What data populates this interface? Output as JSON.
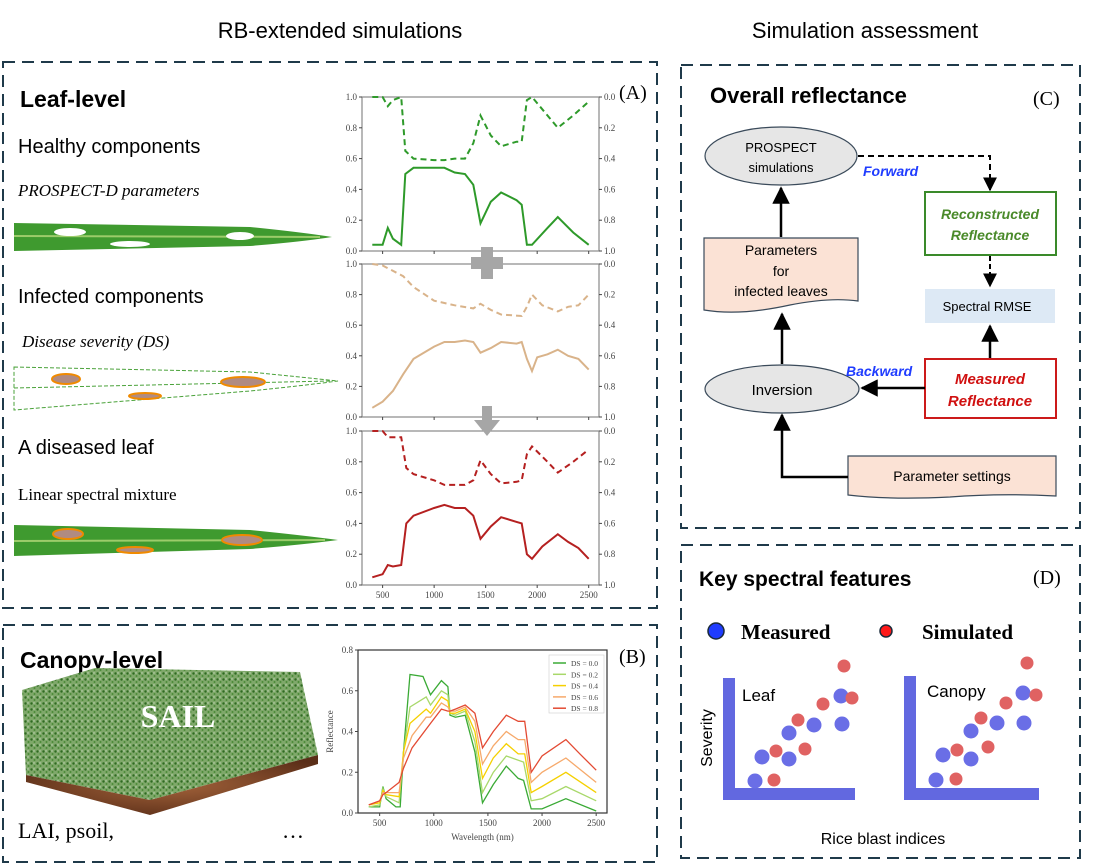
{
  "headers": {
    "left": "RB-extended simulations",
    "right": "Simulation assessment"
  },
  "panel_a": {
    "label": "(A)",
    "title": "Leaf-level",
    "healthy": "Healthy components",
    "healthy_sub": "PROSPECT-D parameters",
    "infected": "Infected components",
    "infected_sub": "Disease severity (DS)",
    "diseased": "A diseased leaf",
    "diseased_sub": "Linear spectral mixture"
  },
  "panel_b": {
    "label": "(B)",
    "title": "Canopy-level",
    "model": "SAIL",
    "params": "LAI, psoil,",
    "ellipsis": "…"
  },
  "panel_c": {
    "label": "(C)",
    "title": "Overall reflectance",
    "prospect": [
      "PROSPECT",
      "simulations"
    ],
    "forward": "Forward",
    "backward": "Backward",
    "reconstructed": [
      "Reconstructed",
      "Reflectance"
    ],
    "rmse": "Spectral RMSE",
    "parameters": [
      "Parameters",
      "for",
      "infected leaves"
    ],
    "inversion": "Inversion",
    "measured": [
      "Measured",
      "Reflectance"
    ],
    "settings": "Parameter settings"
  },
  "panel_d": {
    "label": "(D)",
    "title": "Key spectral features",
    "legend_measured": "Measured",
    "legend_simulated": "Simulated",
    "leaf": "Leaf",
    "canopy": "Canopy",
    "ylabel": "Severity",
    "xlabel": "Rice blast indices",
    "colors": {
      "measured": "#6a6ee6",
      "simulated": "#e06262",
      "axes": "#6268e0"
    }
  },
  "chart_data": [
    {
      "type": "line",
      "panel": "A-healthy",
      "xlim": [
        300,
        2600
      ],
      "ylim": [
        0,
        1
      ],
      "ylim_right": [
        1,
        0
      ],
      "xticks": [
        500,
        1000,
        1500,
        2000,
        2500
      ],
      "yticks": [
        "0.0",
        "0.2",
        "0.4",
        "0.6",
        "0.8",
        "1.0"
      ],
      "yticks_right": [
        "1.0",
        "0.8",
        "0.6",
        "0.4",
        "0.2",
        "0.0"
      ],
      "color": "#2e9a2a",
      "reflectance": [
        [
          400,
          0.04
        ],
        [
          500,
          0.04
        ],
        [
          550,
          0.15
        ],
        [
          600,
          0.08
        ],
        [
          680,
          0.04
        ],
        [
          720,
          0.5
        ],
        [
          800,
          0.54
        ],
        [
          1000,
          0.54
        ],
        [
          1100,
          0.54
        ],
        [
          1200,
          0.51
        ],
        [
          1300,
          0.5
        ],
        [
          1380,
          0.43
        ],
        [
          1450,
          0.18
        ],
        [
          1550,
          0.32
        ],
        [
          1650,
          0.38
        ],
        [
          1800,
          0.33
        ],
        [
          1850,
          0.3
        ],
        [
          1900,
          0.04
        ],
        [
          1950,
          0.04
        ],
        [
          2100,
          0.15
        ],
        [
          2200,
          0.22
        ],
        [
          2350,
          0.12
        ],
        [
          2500,
          0.04
        ]
      ],
      "transmittance": [
        [
          400,
          0
        ],
        [
          500,
          0
        ],
        [
          550,
          0.06
        ],
        [
          600,
          0.02
        ],
        [
          680,
          0
        ],
        [
          720,
          0.35
        ],
        [
          800,
          0.4
        ],
        [
          1000,
          0.41
        ],
        [
          1100,
          0.41
        ],
        [
          1200,
          0.4
        ],
        [
          1300,
          0.4
        ],
        [
          1380,
          0.3
        ],
        [
          1450,
          0.12
        ],
        [
          1550,
          0.25
        ],
        [
          1650,
          0.32
        ],
        [
          1800,
          0.29
        ],
        [
          1850,
          0.29
        ],
        [
          1900,
          0.02
        ],
        [
          1950,
          0
        ],
        [
          2100,
          0.12
        ],
        [
          2200,
          0.2
        ],
        [
          2350,
          0.12
        ],
        [
          2500,
          0.03
        ]
      ]
    },
    {
      "type": "line",
      "panel": "A-infected",
      "xlim": [
        300,
        2600
      ],
      "ylim": [
        0,
        1
      ],
      "ylim_right": [
        1,
        0
      ],
      "xticks": [
        500,
        1000,
        1500,
        2000,
        2500
      ],
      "yticks": [
        "0.0",
        "0.2",
        "0.4",
        "0.6",
        "0.8",
        "1.0"
      ],
      "yticks_right": [
        "1.0",
        "0.8",
        "0.6",
        "0.4",
        "0.2",
        "0.0"
      ],
      "color": "#d9b38a",
      "reflectance": [
        [
          400,
          0.06
        ],
        [
          500,
          0.1
        ],
        [
          600,
          0.17
        ],
        [
          700,
          0.28
        ],
        [
          800,
          0.38
        ],
        [
          1000,
          0.46
        ],
        [
          1100,
          0.49
        ],
        [
          1200,
          0.49
        ],
        [
          1300,
          0.5
        ],
        [
          1380,
          0.49
        ],
        [
          1450,
          0.42
        ],
        [
          1550,
          0.45
        ],
        [
          1650,
          0.49
        ],
        [
          1800,
          0.48
        ],
        [
          1850,
          0.49
        ],
        [
          1900,
          0.38
        ],
        [
          1950,
          0.3
        ],
        [
          2000,
          0.39
        ],
        [
          2100,
          0.41
        ],
        [
          2200,
          0.44
        ],
        [
          2300,
          0.4
        ],
        [
          2400,
          0.38
        ],
        [
          2500,
          0.31
        ]
      ],
      "transmittance": [
        [
          400,
          0
        ],
        [
          500,
          0.01
        ],
        [
          700,
          0.08
        ],
        [
          800,
          0.15
        ],
        [
          1000,
          0.24
        ],
        [
          1200,
          0.27
        ],
        [
          1380,
          0.29
        ],
        [
          1450,
          0.26
        ],
        [
          1550,
          0.3
        ],
        [
          1650,
          0.33
        ],
        [
          1850,
          0.34
        ],
        [
          1900,
          0.28
        ],
        [
          1950,
          0.2
        ],
        [
          2050,
          0.27
        ],
        [
          2200,
          0.31
        ],
        [
          2300,
          0.28
        ],
        [
          2400,
          0.27
        ],
        [
          2500,
          0.2
        ]
      ]
    },
    {
      "type": "line",
      "panel": "A-diseased",
      "xlim": [
        300,
        2600
      ],
      "ylim": [
        0,
        1
      ],
      "ylim_right": [
        1,
        0
      ],
      "xticks": [
        500,
        1000,
        1500,
        2000,
        2500
      ],
      "yticks": [
        "0.0",
        "0.2",
        "0.4",
        "0.6",
        "0.8",
        "1.0"
      ],
      "yticks_right": [
        "1.0",
        "0.8",
        "0.6",
        "0.4",
        "0.2",
        "0.0"
      ],
      "color": "#b52020",
      "reflectance": [
        [
          400,
          0.05
        ],
        [
          500,
          0.07
        ],
        [
          550,
          0.13
        ],
        [
          600,
          0.12
        ],
        [
          680,
          0.13
        ],
        [
          730,
          0.4
        ],
        [
          800,
          0.45
        ],
        [
          1000,
          0.5
        ],
        [
          1100,
          0.52
        ],
        [
          1200,
          0.5
        ],
        [
          1300,
          0.5
        ],
        [
          1380,
          0.45
        ],
        [
          1450,
          0.3
        ],
        [
          1550,
          0.38
        ],
        [
          1650,
          0.44
        ],
        [
          1800,
          0.41
        ],
        [
          1850,
          0.4
        ],
        [
          1900,
          0.2
        ],
        [
          1950,
          0.17
        ],
        [
          2050,
          0.25
        ],
        [
          2200,
          0.33
        ],
        [
          2300,
          0.28
        ],
        [
          2400,
          0.24
        ],
        [
          2500,
          0.17
        ]
      ],
      "transmittance": [
        [
          400,
          0
        ],
        [
          500,
          0
        ],
        [
          550,
          0.04
        ],
        [
          680,
          0.04
        ],
        [
          730,
          0.24
        ],
        [
          800,
          0.28
        ],
        [
          1000,
          0.32
        ],
        [
          1100,
          0.35
        ],
        [
          1300,
          0.35
        ],
        [
          1380,
          0.32
        ],
        [
          1450,
          0.19
        ],
        [
          1550,
          0.28
        ],
        [
          1650,
          0.34
        ],
        [
          1800,
          0.33
        ],
        [
          1850,
          0.32
        ],
        [
          1900,
          0.15
        ],
        [
          1950,
          0.1
        ],
        [
          2100,
          0.2
        ],
        [
          2200,
          0.27
        ],
        [
          2350,
          0.2
        ],
        [
          2500,
          0.12
        ]
      ]
    },
    {
      "type": "line",
      "panel": "B",
      "xlim": [
        300,
        2600
      ],
      "ylim": [
        0,
        0.8
      ],
      "xlabel": "Wavelength (nm)",
      "ylabel": "Reflectance",
      "xticks": [
        500,
        1000,
        1500,
        2000,
        2500
      ],
      "yticks": [
        "0.0",
        "0.2",
        "0.4",
        "0.6",
        "0.8"
      ],
      "legend": "top-right",
      "series": [
        {
          "name": "DS = 0.0",
          "color": "#3aaa35",
          "points": [
            [
              400,
              0.03
            ],
            [
              500,
              0.03
            ],
            [
              530,
              0.13
            ],
            [
              560,
              0.07
            ],
            [
              650,
              0.03
            ],
            [
              690,
              0.03
            ],
            [
              720,
              0.3
            ],
            [
              780,
              0.68
            ],
            [
              900,
              0.67
            ],
            [
              970,
              0.58
            ],
            [
              1070,
              0.65
            ],
            [
              1130,
              0.62
            ],
            [
              1150,
              0.48
            ],
            [
              1200,
              0.47
            ],
            [
              1290,
              0.48
            ],
            [
              1380,
              0.3
            ],
            [
              1450,
              0.05
            ],
            [
              1550,
              0.14
            ],
            [
              1670,
              0.23
            ],
            [
              1780,
              0.17
            ],
            [
              1830,
              0.16
            ],
            [
              1900,
              0.02
            ],
            [
              2000,
              0.02
            ],
            [
              2220,
              0.07
            ],
            [
              2500,
              0.01
            ]
          ]
        },
        {
          "name": "DS = 0.2",
          "color": "#a8d86a",
          "points": [
            [
              400,
              0.03
            ],
            [
              500,
              0.04
            ],
            [
              530,
              0.12
            ],
            [
              560,
              0.08
            ],
            [
              680,
              0.05
            ],
            [
              720,
              0.3
            ],
            [
              780,
              0.52
            ],
            [
              930,
              0.57
            ],
            [
              970,
              0.53
            ],
            [
              1070,
              0.6
            ],
            [
              1130,
              0.58
            ],
            [
              1150,
              0.49
            ],
            [
              1200,
              0.48
            ],
            [
              1290,
              0.5
            ],
            [
              1380,
              0.35
            ],
            [
              1450,
              0.1
            ],
            [
              1550,
              0.2
            ],
            [
              1670,
              0.28
            ],
            [
              1830,
              0.25
            ],
            [
              1900,
              0.06
            ],
            [
              2000,
              0.07
            ],
            [
              2220,
              0.13
            ],
            [
              2500,
              0.06
            ]
          ]
        },
        {
          "name": "DS = 0.4",
          "color": "#f5d000",
          "points": [
            [
              400,
              0.04
            ],
            [
              500,
              0.05
            ],
            [
              530,
              0.11
            ],
            [
              560,
              0.09
            ],
            [
              680,
              0.08
            ],
            [
              720,
              0.3
            ],
            [
              780,
              0.44
            ],
            [
              930,
              0.51
            ],
            [
              970,
              0.49
            ],
            [
              1070,
              0.57
            ],
            [
              1130,
              0.55
            ],
            [
              1150,
              0.49
            ],
            [
              1200,
              0.49
            ],
            [
              1290,
              0.51
            ],
            [
              1380,
              0.4
            ],
            [
              1450,
              0.17
            ],
            [
              1550,
              0.27
            ],
            [
              1670,
              0.34
            ],
            [
              1780,
              0.29
            ],
            [
              1840,
              0.29
            ],
            [
              1900,
              0.1
            ],
            [
              2000,
              0.13
            ],
            [
              2220,
              0.2
            ],
            [
              2500,
              0.1
            ]
          ]
        },
        {
          "name": "DS = 0.6",
          "color": "#f6a96b",
          "points": [
            [
              400,
              0.04
            ],
            [
              500,
              0.06
            ],
            [
              530,
              0.1
            ],
            [
              560,
              0.1
            ],
            [
              680,
              0.1
            ],
            [
              720,
              0.27
            ],
            [
              800,
              0.38
            ],
            [
              930,
              0.47
            ],
            [
              970,
              0.47
            ],
            [
              1070,
              0.54
            ],
            [
              1130,
              0.52
            ],
            [
              1150,
              0.5
            ],
            [
              1200,
              0.5
            ],
            [
              1290,
              0.52
            ],
            [
              1380,
              0.45
            ],
            [
              1450,
              0.24
            ],
            [
              1550,
              0.33
            ],
            [
              1670,
              0.4
            ],
            [
              1780,
              0.36
            ],
            [
              1840,
              0.36
            ],
            [
              1900,
              0.15
            ],
            [
              2000,
              0.2
            ],
            [
              2220,
              0.27
            ],
            [
              2500,
              0.15
            ]
          ]
        },
        {
          "name": "DS = 0.8",
          "color": "#e34a33",
          "points": [
            [
              400,
              0.04
            ],
            [
              500,
              0.06
            ],
            [
              530,
              0.09
            ],
            [
              560,
              0.1
            ],
            [
              680,
              0.15
            ],
            [
              720,
              0.22
            ],
            [
              800,
              0.32
            ],
            [
              970,
              0.44
            ],
            [
              1070,
              0.51
            ],
            [
              1130,
              0.5
            ],
            [
              1150,
              0.5
            ],
            [
              1200,
              0.51
            ],
            [
              1290,
              0.53
            ],
            [
              1380,
              0.49
            ],
            [
              1450,
              0.32
            ],
            [
              1550,
              0.4
            ],
            [
              1670,
              0.48
            ],
            [
              1780,
              0.45
            ],
            [
              1840,
              0.45
            ],
            [
              1900,
              0.2
            ],
            [
              2000,
              0.28
            ],
            [
              2220,
              0.36
            ],
            [
              2350,
              0.29
            ],
            [
              2500,
              0.21
            ]
          ]
        }
      ]
    }
  ]
}
